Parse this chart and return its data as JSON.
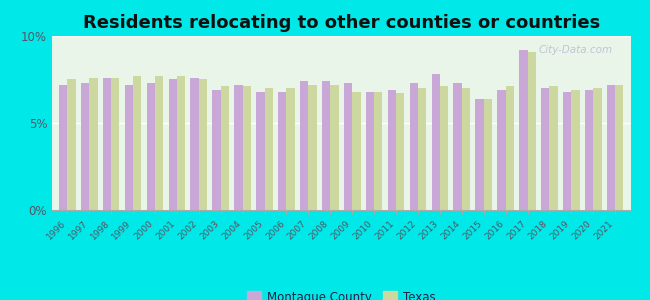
{
  "title": "Residents relocating to other counties or countries",
  "years": [
    1996,
    1997,
    1998,
    1999,
    2000,
    2001,
    2002,
    2003,
    2004,
    2005,
    2006,
    2007,
    2008,
    2009,
    2010,
    2011,
    2012,
    2013,
    2014,
    2015,
    2016,
    2017,
    2018,
    2019,
    2020,
    2021
  ],
  "montague": [
    7.2,
    7.3,
    7.6,
    7.2,
    7.3,
    7.5,
    7.6,
    6.9,
    7.2,
    6.8,
    6.8,
    7.4,
    7.4,
    7.3,
    6.8,
    6.9,
    7.3,
    7.8,
    7.3,
    6.4,
    6.9,
    9.2,
    7.0,
    6.8,
    6.9,
    7.2
  ],
  "texas": [
    7.5,
    7.6,
    7.6,
    7.7,
    7.7,
    7.7,
    7.5,
    7.1,
    7.1,
    7.0,
    7.0,
    7.2,
    7.2,
    6.8,
    6.8,
    6.7,
    7.0,
    7.1,
    7.0,
    6.4,
    7.1,
    9.1,
    7.1,
    6.9,
    7.0,
    7.2
  ],
  "montague_color": "#c9a8d8",
  "texas_color": "#ccd8a0",
  "background_color": "#eaf5ea",
  "outer_background": "#00e8e8",
  "ylim": [
    0,
    10
  ],
  "yticks": [
    0,
    5,
    10
  ],
  "ytick_labels": [
    "0%",
    "5%",
    "10%"
  ],
  "title_fontsize": 13,
  "bar_width": 0.38,
  "legend_montague": "Montague County",
  "legend_texas": "Texas"
}
